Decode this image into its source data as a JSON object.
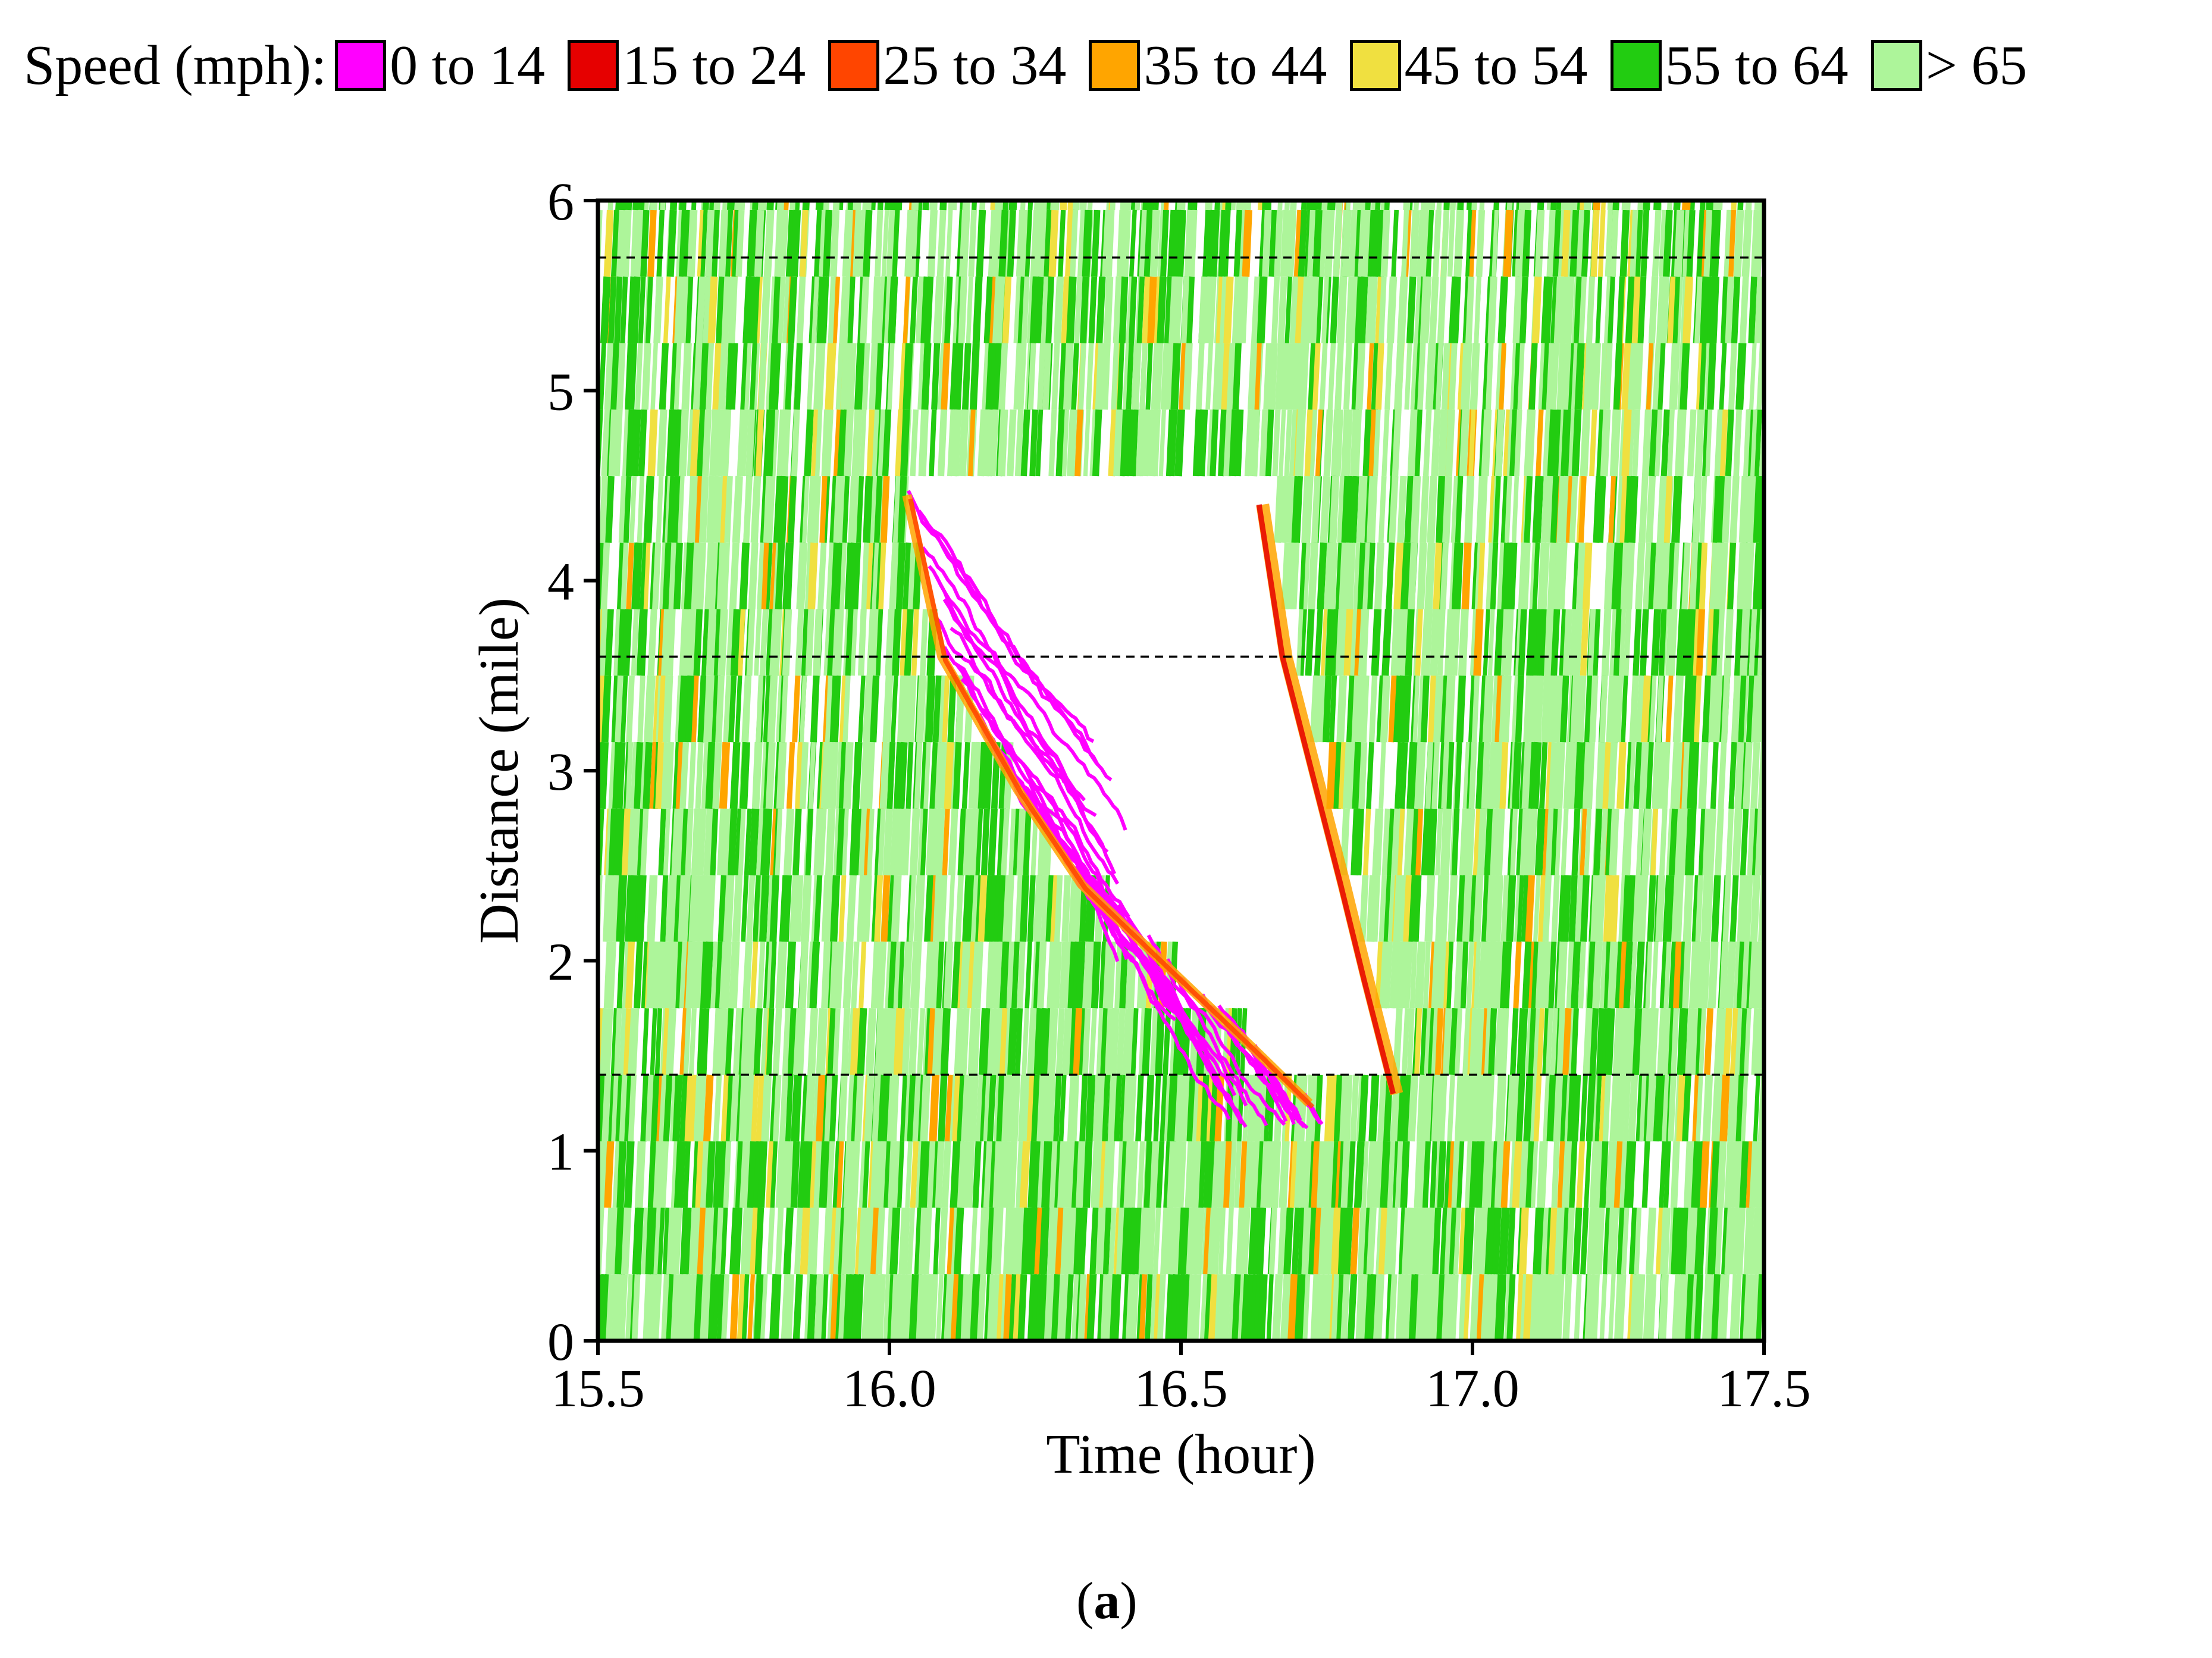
{
  "legend": {
    "title": "Speed (mph):",
    "items": [
      {
        "label": "0 to 14",
        "color": "#FF00FF"
      },
      {
        "label": "15 to 24",
        "color": "#E60000"
      },
      {
        "label": "25 to 34",
        "color": "#FF4500"
      },
      {
        "label": "35 to 44",
        "color": "#FFA500"
      },
      {
        "label": "45 to 54",
        "color": "#F0E040"
      },
      {
        "label": "55 to 64",
        "color": "#22CC11"
      },
      {
        "label": "> 65",
        "color": "#ADF59A"
      }
    ]
  },
  "chart_data": {
    "type": "scatter",
    "description_kind": "vehicle trajectory time-space diagram colored by speed",
    "xlabel": "Time (hour)",
    "ylabel": "Distance (mile)",
    "xlim": [
      15.5,
      17.5
    ],
    "ylim": [
      0,
      6
    ],
    "xticks": [
      "15.5",
      "16.0",
      "16.5",
      "17.0",
      "17.5"
    ],
    "yticks": [
      "0",
      "1",
      "2",
      "3",
      "4",
      "5",
      "6"
    ],
    "reference_lines_y": [
      1.4,
      3.6,
      5.7
    ],
    "congested_region": {
      "upstream_front": [
        [
          16.03,
          4.45
        ],
        [
          16.09,
          3.6
        ],
        [
          16.22,
          2.9
        ],
        [
          16.33,
          2.4
        ],
        [
          16.5,
          1.9
        ],
        [
          16.62,
          1.55
        ],
        [
          16.72,
          1.25
        ]
      ],
      "downstream_front": [
        [
          16.64,
          4.4
        ],
        [
          16.68,
          3.6
        ],
        [
          16.73,
          3.0
        ],
        [
          16.78,
          2.4
        ],
        [
          16.82,
          1.9
        ],
        [
          16.87,
          1.3
        ]
      ]
    }
  },
  "caption": {
    "open": "(",
    "letter": "a",
    "close": ")"
  }
}
